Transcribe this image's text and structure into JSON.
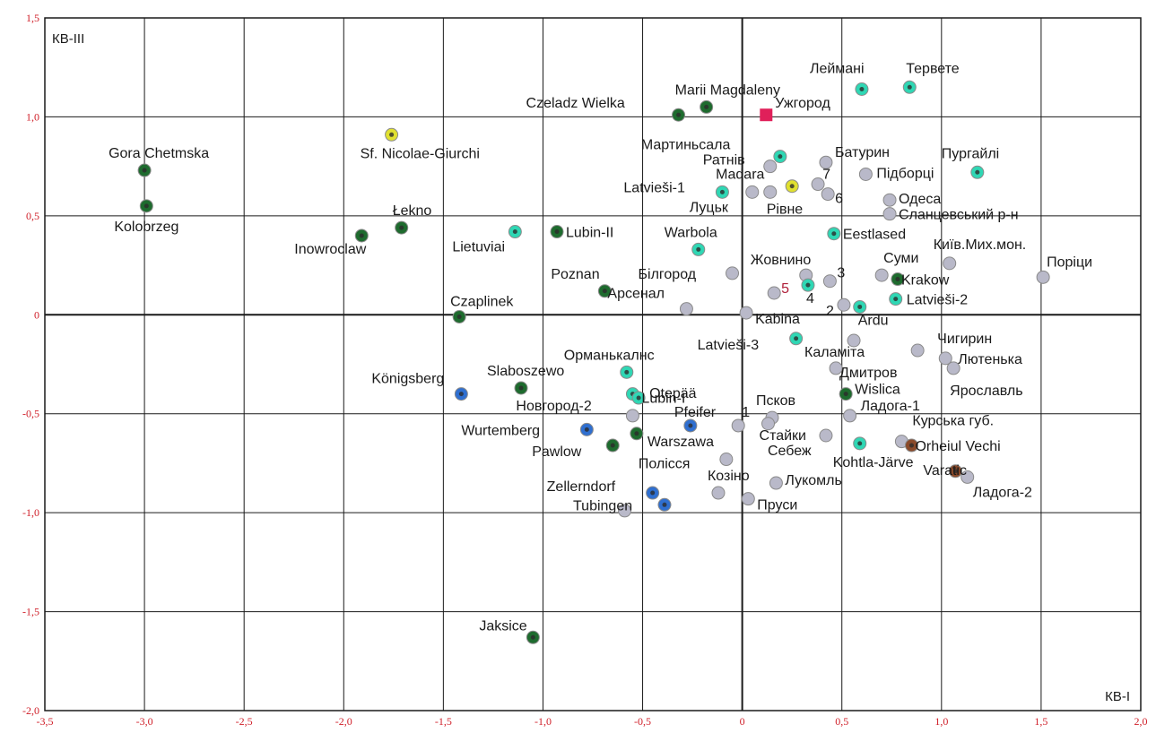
{
  "chart_data": {
    "type": "scatter",
    "xlabel": "КВ-І",
    "ylabel": "КВ-ІІІ",
    "xlim": [
      -3.5,
      2.0
    ],
    "ylim": [
      -2.0,
      1.5
    ],
    "grid": true,
    "x_ticks": [
      "-3,5",
      "-3,0",
      "-2,5",
      "-2,0",
      "-1,5",
      "-1,0",
      "-0,5",
      "0",
      "0,5",
      "1,0",
      "1,5",
      "2,0"
    ],
    "y_ticks": [
      "1,5",
      "1,0",
      "0,5",
      "0",
      "-0,5",
      "-1,0",
      "-1,5",
      "-2,0"
    ],
    "colors": {
      "dark_green": "#1e6b2e",
      "teal": "#2fd7b4",
      "grey": "#b9b9c9",
      "blue": "#2f6fd0",
      "yellow": "#e0e030",
      "brown": "#8a4a2a",
      "red_square": "#e0205a"
    },
    "points": [
      {
        "label": "Gora Chetmska",
        "x": -3.0,
        "y": 0.73,
        "color": "dark_green"
      },
      {
        "label": "Kolobrzeg",
        "x": -2.99,
        "y": 0.55,
        "color": "dark_green"
      },
      {
        "label": "Inowroclaw",
        "x": -1.91,
        "y": 0.4,
        "color": "dark_green"
      },
      {
        "label": "Łekno",
        "x": -1.71,
        "y": 0.44,
        "color": "dark_green"
      },
      {
        "label": "Sf. Nicolae-Giurchi",
        "x": -1.76,
        "y": 0.91,
        "color": "yellow"
      },
      {
        "label": "Lietuviai",
        "x": -1.14,
        "y": 0.42,
        "color": "teal"
      },
      {
        "label": "Lubin-II",
        "x": -0.93,
        "y": 0.42,
        "color": "dark_green"
      },
      {
        "label": "Poznan",
        "x": -0.69,
        "y": 0.12,
        "color": "dark_green"
      },
      {
        "label": "Czaplinek",
        "x": -1.42,
        "y": -0.01,
        "color": "dark_green"
      },
      {
        "label": "Czeladz Wielka",
        "x": -0.32,
        "y": 1.01,
        "color": "dark_green"
      },
      {
        "label": "Marii Magdaleny",
        "x": -0.18,
        "y": 1.05,
        "color": "dark_green"
      },
      {
        "label": "Ужгород",
        "x": 0.12,
        "y": 1.01,
        "color": "red_square"
      },
      {
        "label": "Леймані",
        "x": 0.6,
        "y": 1.14,
        "color": "teal"
      },
      {
        "label": "Тервете",
        "x": 0.84,
        "y": 1.15,
        "color": "teal"
      },
      {
        "label": "Пургайлі",
        "x": 1.18,
        "y": 0.72,
        "color": "teal"
      },
      {
        "label": "Мартиньсала",
        "x": 0.19,
        "y": 0.8,
        "color": "teal"
      },
      {
        "label": "Ратнів",
        "x": 0.14,
        "y": 0.75,
        "color": "grey"
      },
      {
        "label": "Madara",
        "x": 0.25,
        "y": 0.65,
        "color": "yellow"
      },
      {
        "label": "Latvieši-1",
        "x": -0.1,
        "y": 0.62,
        "color": "teal"
      },
      {
        "label": "Луцьк",
        "x": 0.05,
        "y": 0.62,
        "color": "grey"
      },
      {
        "label": "Рівне",
        "x": 0.14,
        "y": 0.62,
        "color": "grey"
      },
      {
        "label": "Батурин",
        "x": 0.42,
        "y": 0.77,
        "color": "grey"
      },
      {
        "label": "7",
        "x": 0.38,
        "y": 0.66,
        "color": "grey"
      },
      {
        "label": "6",
        "x": 0.43,
        "y": 0.61,
        "color": "grey"
      },
      {
        "label": "Підборці",
        "x": 0.62,
        "y": 0.71,
        "color": "grey"
      },
      {
        "label": "Одеса",
        "x": 0.74,
        "y": 0.58,
        "color": "grey"
      },
      {
        "label": "Сланцевський р-н",
        "x": 0.74,
        "y": 0.51,
        "color": "grey"
      },
      {
        "label": "Eestlased",
        "x": 0.46,
        "y": 0.41,
        "color": "teal"
      },
      {
        "label": "Warbola",
        "x": -0.22,
        "y": 0.33,
        "color": "teal"
      },
      {
        "label": "Білгород",
        "x": -0.05,
        "y": 0.21,
        "color": "grey"
      },
      {
        "label": "Жовнино",
        "x": 0.32,
        "y": 0.2,
        "color": "grey"
      },
      {
        "label": "3",
        "x": 0.44,
        "y": 0.17,
        "color": "grey"
      },
      {
        "label": "5",
        "x": 0.16,
        "y": 0.11,
        "color": "grey"
      },
      {
        "label": "4",
        "x": 0.33,
        "y": 0.15,
        "color": "teal"
      },
      {
        "label": "Суми",
        "x": 0.7,
        "y": 0.2,
        "color": "grey"
      },
      {
        "label": "Krakow",
        "x": 0.78,
        "y": 0.18,
        "color": "dark_green"
      },
      {
        "label": "Київ.Мих.мон.",
        "x": 1.04,
        "y": 0.26,
        "color": "grey"
      },
      {
        "label": "Поріци",
        "x": 1.51,
        "y": 0.19,
        "color": "grey"
      },
      {
        "label": "Latvieši-2",
        "x": 0.77,
        "y": 0.08,
        "color": "teal"
      },
      {
        "label": "Арсенал",
        "x": -0.28,
        "y": 0.03,
        "color": "grey"
      },
      {
        "label": "Kabina",
        "x": 0.02,
        "y": 0.01,
        "color": "grey"
      },
      {
        "label": "2",
        "x": 0.51,
        "y": 0.05,
        "color": "grey"
      },
      {
        "label": "Ardu",
        "x": 0.59,
        "y": 0.04,
        "color": "teal"
      },
      {
        "label": "Latvieši-3",
        "x": 0.27,
        "y": -0.12,
        "color": "teal"
      },
      {
        "label": "Каламіта",
        "x": 0.56,
        "y": -0.13,
        "color": "grey"
      },
      {
        "label": "Чигирин",
        "x": 0.88,
        "y": -0.18,
        "color": "grey"
      },
      {
        "label": "Лютенька",
        "x": 1.02,
        "y": -0.22,
        "color": "grey"
      },
      {
        "label": "Дмитров",
        "x": 0.47,
        "y": -0.27,
        "color": "grey"
      },
      {
        "label": "Ярославль",
        "x": 1.06,
        "y": -0.27,
        "color": "grey"
      },
      {
        "label": "Орманькалнс",
        "x": -0.58,
        "y": -0.29,
        "color": "teal"
      },
      {
        "label": "Lubin-I",
        "x": -0.55,
        "y": -0.4,
        "color": "teal"
      },
      {
        "label": "Slaboszewo",
        "x": -1.11,
        "y": -0.37,
        "color": "dark_green"
      },
      {
        "label": "Königsberg",
        "x": -1.41,
        "y": -0.4,
        "color": "blue"
      },
      {
        "label": "Otepää",
        "x": -0.52,
        "y": -0.42,
        "color": "teal"
      },
      {
        "label": "Новгород-2",
        "x": -0.55,
        "y": -0.51,
        "color": "grey"
      },
      {
        "label": "Wislica",
        "x": 0.52,
        "y": -0.4,
        "color": "dark_green"
      },
      {
        "label": "Ладога-1",
        "x": 0.54,
        "y": -0.51,
        "color": "grey"
      },
      {
        "label": "Псков",
        "x": 0.15,
        "y": -0.52,
        "color": "grey"
      },
      {
        "label": "Pfeifer",
        "x": -0.26,
        "y": -0.56,
        "color": "blue"
      },
      {
        "label": "1",
        "x": -0.02,
        "y": -0.56,
        "color": "grey"
      },
      {
        "label": "Стайки",
        "x": 0.13,
        "y": -0.55,
        "color": "grey"
      },
      {
        "label": "Wurtemberg",
        "x": -0.78,
        "y": -0.58,
        "color": "blue"
      },
      {
        "label": "Warszawa",
        "x": -0.53,
        "y": -0.6,
        "color": "dark_green"
      },
      {
        "label": "Pawlow",
        "x": -0.65,
        "y": -0.66,
        "color": "dark_green"
      },
      {
        "label": "Себеж",
        "x": 0.42,
        "y": -0.61,
        "color": "grey"
      },
      {
        "label": "Kohtla-Järve",
        "x": 0.59,
        "y": -0.65,
        "color": "teal"
      },
      {
        "label": "Курська губ.",
        "x": 0.8,
        "y": -0.64,
        "color": "grey"
      },
      {
        "label": "Orheiul Vechi",
        "x": 0.85,
        "y": -0.66,
        "color": "brown"
      },
      {
        "label": "Varatic",
        "x": 1.07,
        "y": -0.79,
        "color": "brown"
      },
      {
        "label": "Ладога-2",
        "x": 1.13,
        "y": -0.82,
        "color": "grey"
      },
      {
        "label": "Полісся",
        "x": -0.08,
        "y": -0.73,
        "color": "grey"
      },
      {
        "label": "Козіно",
        "x": -0.12,
        "y": -0.9,
        "color": "grey"
      },
      {
        "label": "Лукомль",
        "x": 0.17,
        "y": -0.85,
        "color": "grey"
      },
      {
        "label": "Пруси",
        "x": 0.03,
        "y": -0.93,
        "color": "grey"
      },
      {
        "label": "Zellerndorf",
        "x": -0.45,
        "y": -0.9,
        "color": "blue"
      },
      {
        "label": "Tubingen",
        "x": -0.39,
        "y": -0.96,
        "color": "blue"
      },
      {
        "label": "",
        "x": -0.59,
        "y": -0.99,
        "color": "grey"
      },
      {
        "label": "Jaksice",
        "x": -1.05,
        "y": -1.63,
        "color": "dark_green"
      }
    ]
  }
}
